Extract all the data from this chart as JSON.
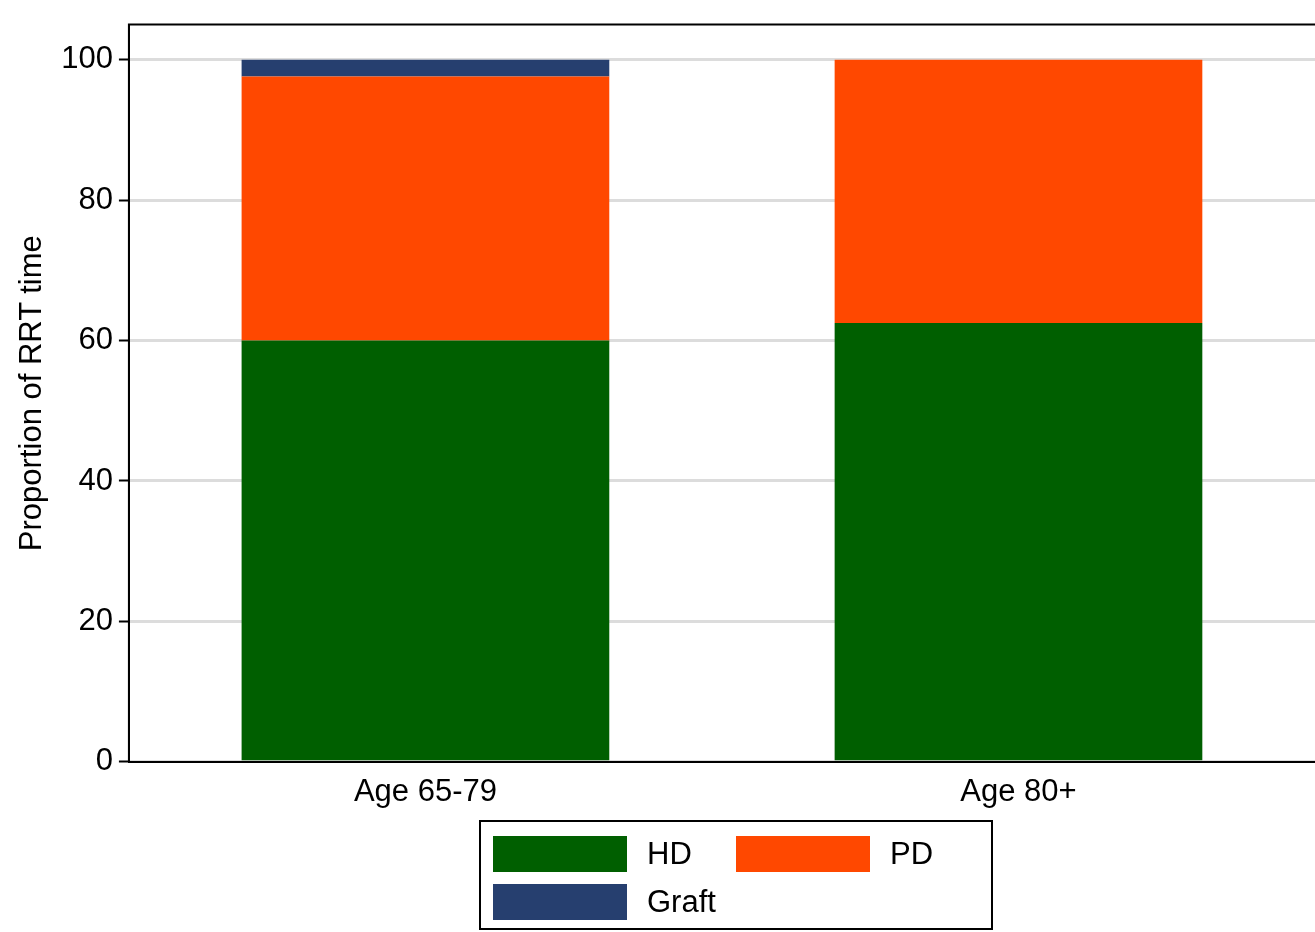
{
  "chart_data": {
    "type": "bar",
    "ylabel": "Proportion of RRT time",
    "categories": [
      "Age 65-79",
      "Age 80+"
    ],
    "stacked": true,
    "series": [
      {
        "name": "HD",
        "color": "#005f00",
        "values": [
          60.0,
          62.5
        ]
      },
      {
        "name": "PD",
        "color": "#ff4800",
        "values": [
          37.6,
          37.5
        ]
      },
      {
        "name": "Graft",
        "color": "#263f6f",
        "values": [
          2.4,
          null
        ]
      }
    ],
    "ylim": [
      0,
      105
    ],
    "yticks": [
      0,
      20,
      40,
      60,
      80,
      100
    ],
    "grid": "y",
    "legend": "bottom"
  }
}
